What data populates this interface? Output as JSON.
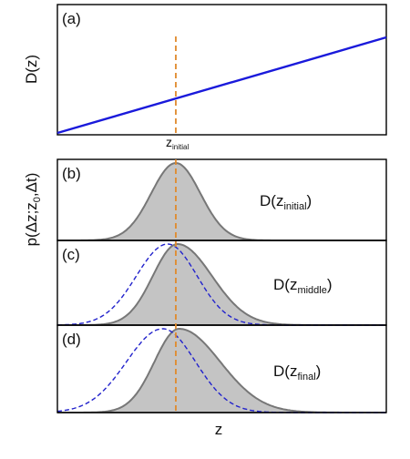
{
  "chart_data": [
    {
      "panel": "(a)",
      "type": "line",
      "ylabel": "D(z)",
      "x": [
        0,
        1
      ],
      "y": [
        0,
        1
      ],
      "series": [
        {
          "color": "#1a1adb",
          "style": "solid"
        }
      ],
      "marker": {
        "label_main": "z",
        "label_sub": "initial",
        "x": 0.36,
        "color": "#e08a2c",
        "style": "dashed"
      }
    },
    {
      "panel": "(b)",
      "type": "area",
      "annotation": {
        "prefix": "D(z",
        "sub": "initial",
        "suffix": ")"
      },
      "series": [
        {
          "kind": "filled",
          "center": 0.36,
          "sigma_left": 0.075,
          "sigma_right": 0.075,
          "fill": "#c4c4c4",
          "stroke": "#777777"
        }
      ]
    },
    {
      "panel": "(c)",
      "type": "area",
      "annotation": {
        "prefix": "D(z",
        "sub": "middle",
        "suffix": ")"
      },
      "series": [
        {
          "kind": "filled",
          "center": 0.365,
          "sigma_left": 0.075,
          "sigma_right": 0.105,
          "fill": "#c4c4c4",
          "stroke": "#777777"
        },
        {
          "kind": "dashed",
          "center": 0.335,
          "sigma_left": 0.095,
          "sigma_right": 0.09,
          "stroke": "#2222cc"
        }
      ]
    },
    {
      "panel": "(d)",
      "type": "area",
      "annotation": {
        "prefix": "D(z",
        "sub": "final",
        "suffix": ")"
      },
      "series": [
        {
          "kind": "filled",
          "center": 0.37,
          "sigma_left": 0.075,
          "sigma_right": 0.125,
          "fill": "#c4c4c4",
          "stroke": "#777777"
        },
        {
          "kind": "dashed",
          "center": 0.32,
          "sigma_left": 0.11,
          "sigma_right": 0.1,
          "stroke": "#2222cc"
        }
      ]
    }
  ],
  "axes": {
    "xlabel": "z",
    "shared_ylabel": {
      "parts": [
        "p(",
        "Δz;z",
        "0",
        ",Δt)"
      ]
    }
  },
  "colors": {
    "line": "#1a1adb",
    "marker": "#e08a2c",
    "fill": "#c4c4c4",
    "fill_stroke": "#777777",
    "dashed": "#2222cc"
  }
}
